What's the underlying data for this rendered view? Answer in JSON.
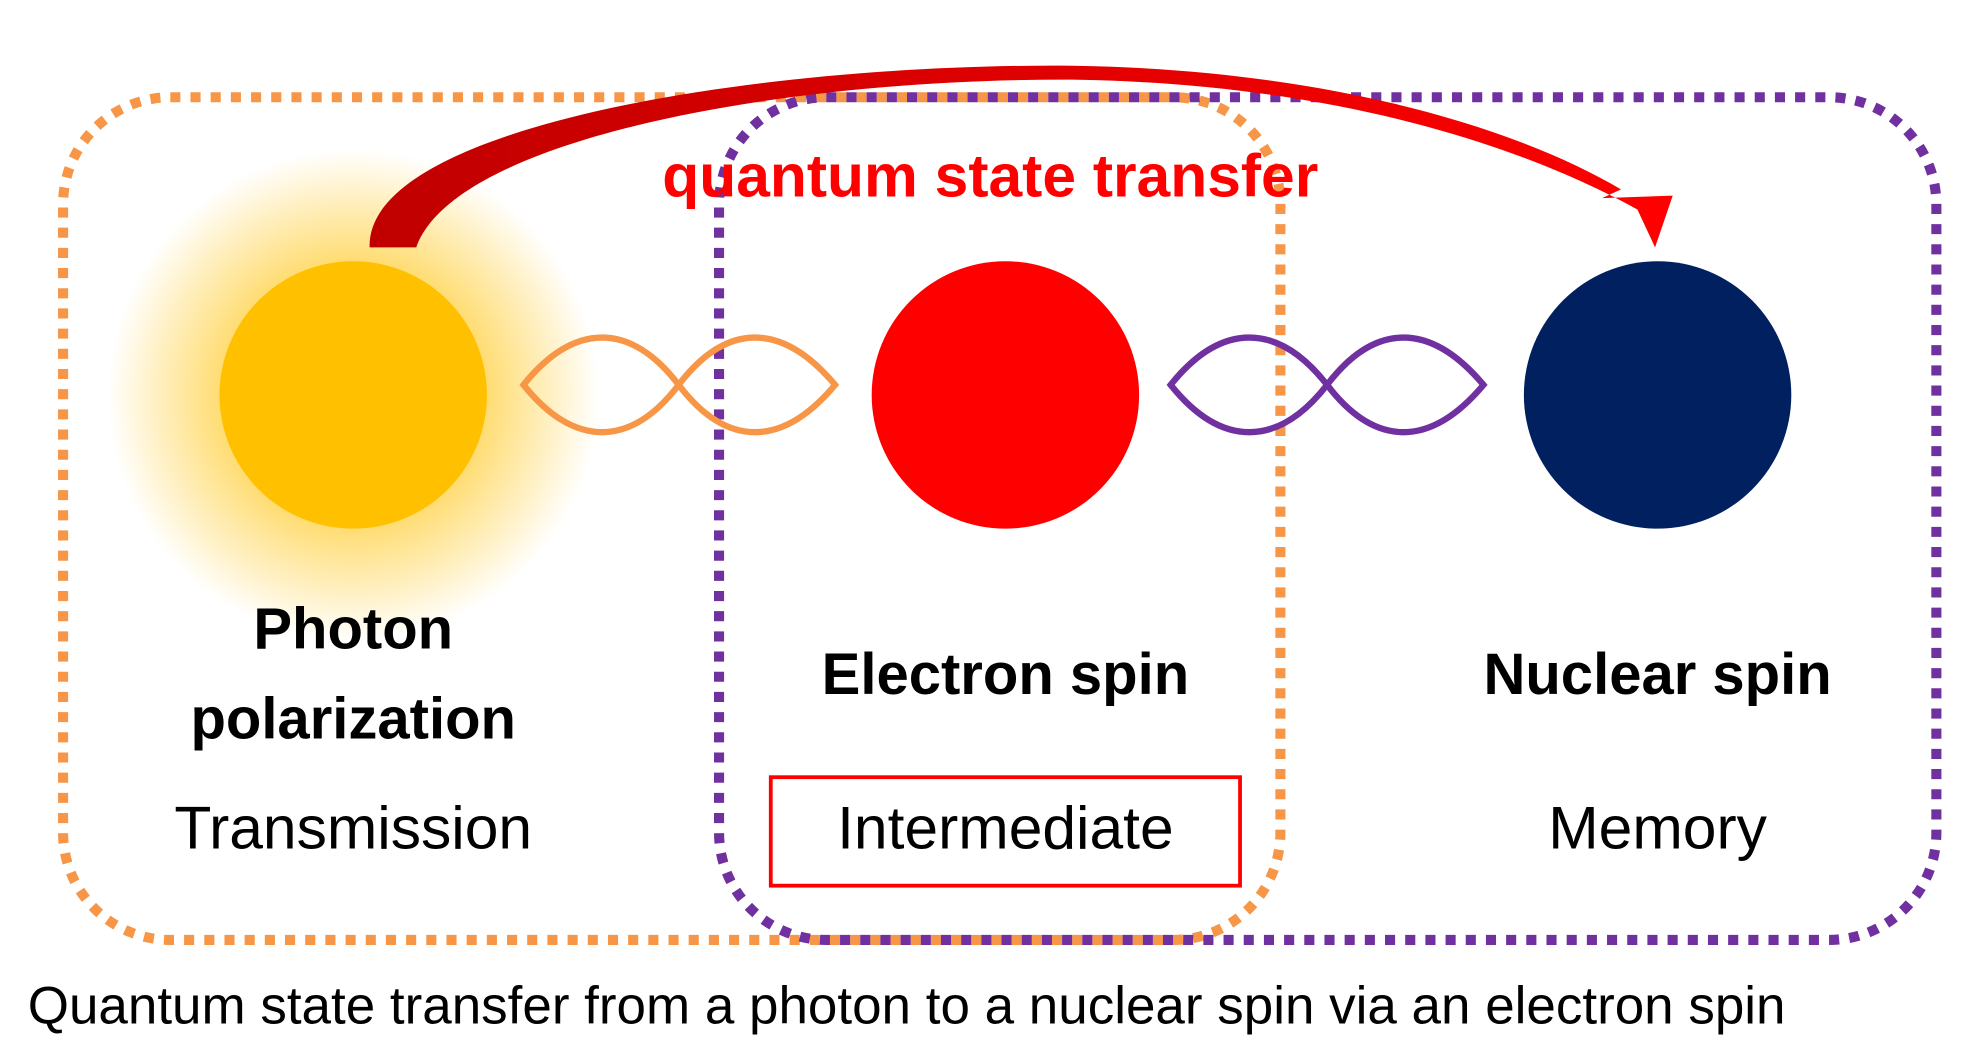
{
  "arrow_label": "quantum state transfer",
  "nodes": [
    {
      "label_lines": [
        "Photon",
        "polarization"
      ],
      "role": "Transmission"
    },
    {
      "label_lines": [
        "Electron spin"
      ],
      "role": "Intermediate"
    },
    {
      "label_lines": [
        "Nuclear spin"
      ],
      "role": "Memory"
    }
  ],
  "caption": "Quantum state transfer from a photon to a nuclear spin via an electron spin"
}
